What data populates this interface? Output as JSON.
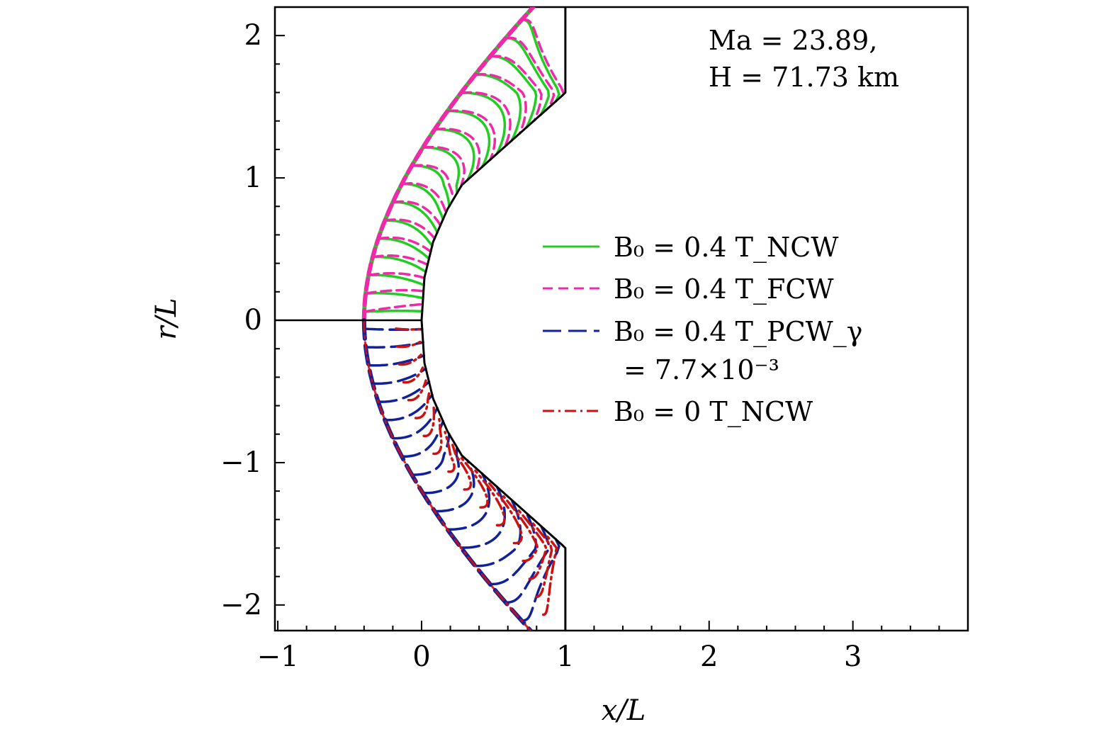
{
  "chart_data": {
    "type": "line",
    "title": "",
    "xlabel": "x/L",
    "ylabel": "r/L",
    "xlim": [
      -1.02,
      3.8
    ],
    "ylim": [
      -2.18,
      2.2
    ],
    "xticks": [
      -1,
      0,
      1,
      2,
      3
    ],
    "yticks": [
      -2,
      -1,
      0,
      1,
      2
    ],
    "xtick_labels": [
      "−1",
      "0",
      "1",
      "2",
      "3"
    ],
    "ytick_labels": [
      "−2",
      "−1",
      "0",
      "1",
      "2"
    ],
    "grid": false,
    "legend_position": "center-right",
    "annotation": {
      "line1": "Ma = 23.89,",
      "line2": "H = 71.73 km"
    },
    "series": [
      {
        "name": "B0 = 0.4 T_NCW",
        "color": "#22cc22",
        "dash": "solid",
        "half": "upper",
        "width": 3.5
      },
      {
        "name": "B0 = 0.4 T_FCW",
        "color": "#ee2aa8",
        "dash": "dashed",
        "half": "upper",
        "width": 3.5
      },
      {
        "name": "B0 = 0.4 T_PCW_γ = 7.7×10^−3",
        "color": "#10219b",
        "dash": "longdash",
        "half": "lower",
        "width": 3.5
      },
      {
        "name": "B0 = 0 T_NCW",
        "color": "#cc1111",
        "dash": "dashdot",
        "half": "lower",
        "width": 3.5
      }
    ],
    "geometry": {
      "shock_standoff": -0.4,
      "body_points": [
        [
          0,
          0
        ],
        [
          0.02,
          0.3
        ],
        [
          0.08,
          0.55
        ],
        [
          0.18,
          0.78
        ],
        [
          0.28,
          0.95
        ],
        [
          0.98,
          1.58
        ],
        [
          1.0,
          1.6
        ],
        [
          1.0,
          2.2
        ]
      ],
      "symmetry_axis": [
        [
          -1.02,
          0
        ],
        [
          0,
          0
        ]
      ]
    }
  },
  "legend": {
    "items": [
      {
        "label": "B₀ = 0.4 T_NCW"
      },
      {
        "label": "B₀ = 0.4 T_FCW"
      },
      {
        "label": "B₀ = 0.4 T_PCW_γ"
      },
      {
        "label": "B₀ = 0 T_NCW"
      }
    ],
    "pcw_continuation": "= 7.7×10⁻³"
  }
}
